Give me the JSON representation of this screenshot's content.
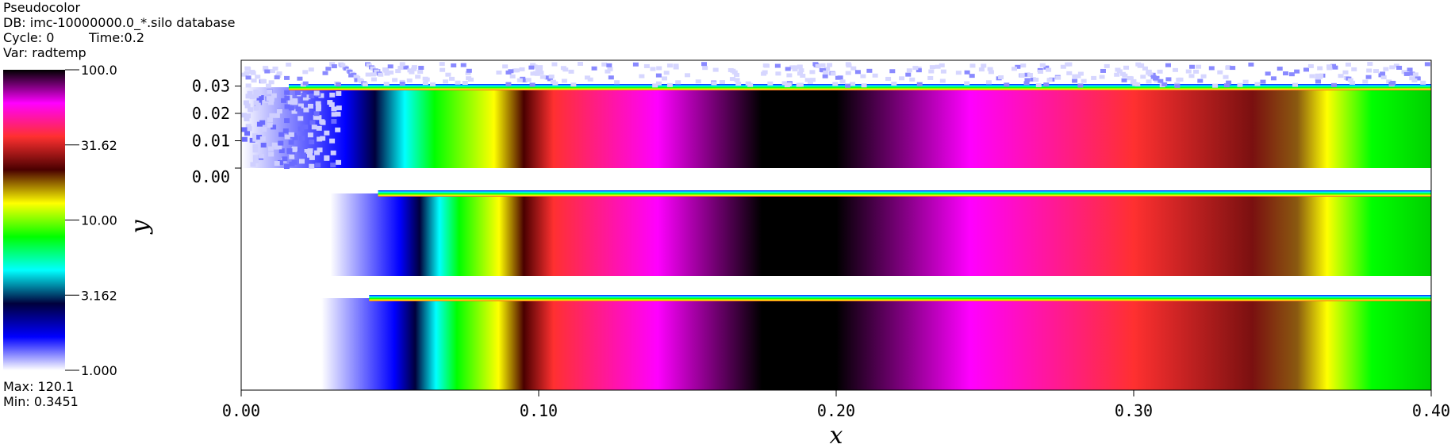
{
  "header": {
    "plot_type": "Pseudocolor",
    "db_line": "DB: imc-10000000.0_*.silo database",
    "cycle_label": "Cycle: 0",
    "time_label": "Time:0.2",
    "var_line": "Var: radtemp"
  },
  "legend": {
    "max_label": "Max:  120.1",
    "min_label": "Min:  0.3451",
    "scale": "log",
    "range": [
      1.0,
      100.0
    ],
    "tick_labels": [
      "100.0",
      "31.62",
      "10.00",
      "3.162",
      "1.000"
    ],
    "colormap": [
      "#ffffff",
      "#0000ff",
      "#00003c",
      "#00ffff",
      "#00ff00",
      "#ffff00",
      "#4a0000",
      "#ff3030",
      "#ff00ff",
      "#000000"
    ]
  },
  "chart_data": {
    "type": "heatmap",
    "xlabel": "x",
    "ylabel": "y",
    "xlim": [
      0.0,
      0.4
    ],
    "ylim": [
      0.0,
      0.035
    ],
    "x_ticks": [
      "0.00",
      "0.10",
      "0.20",
      "0.30",
      "0.40"
    ],
    "y_ticks": [
      "0.00",
      "0.01",
      "0.02",
      "0.03"
    ],
    "colorbar_var": "radtemp",
    "panels": [
      {
        "name": "top",
        "x_start": 0.0,
        "peak_x": 0.19,
        "peak_value": 120.1
      },
      {
        "name": "middle",
        "x_start": 0.03,
        "peak_x": 0.19,
        "peak_value": 120.1
      },
      {
        "name": "bottom",
        "x_start": 0.027,
        "peak_x": 0.19,
        "peak_value": 120.1
      }
    ]
  }
}
